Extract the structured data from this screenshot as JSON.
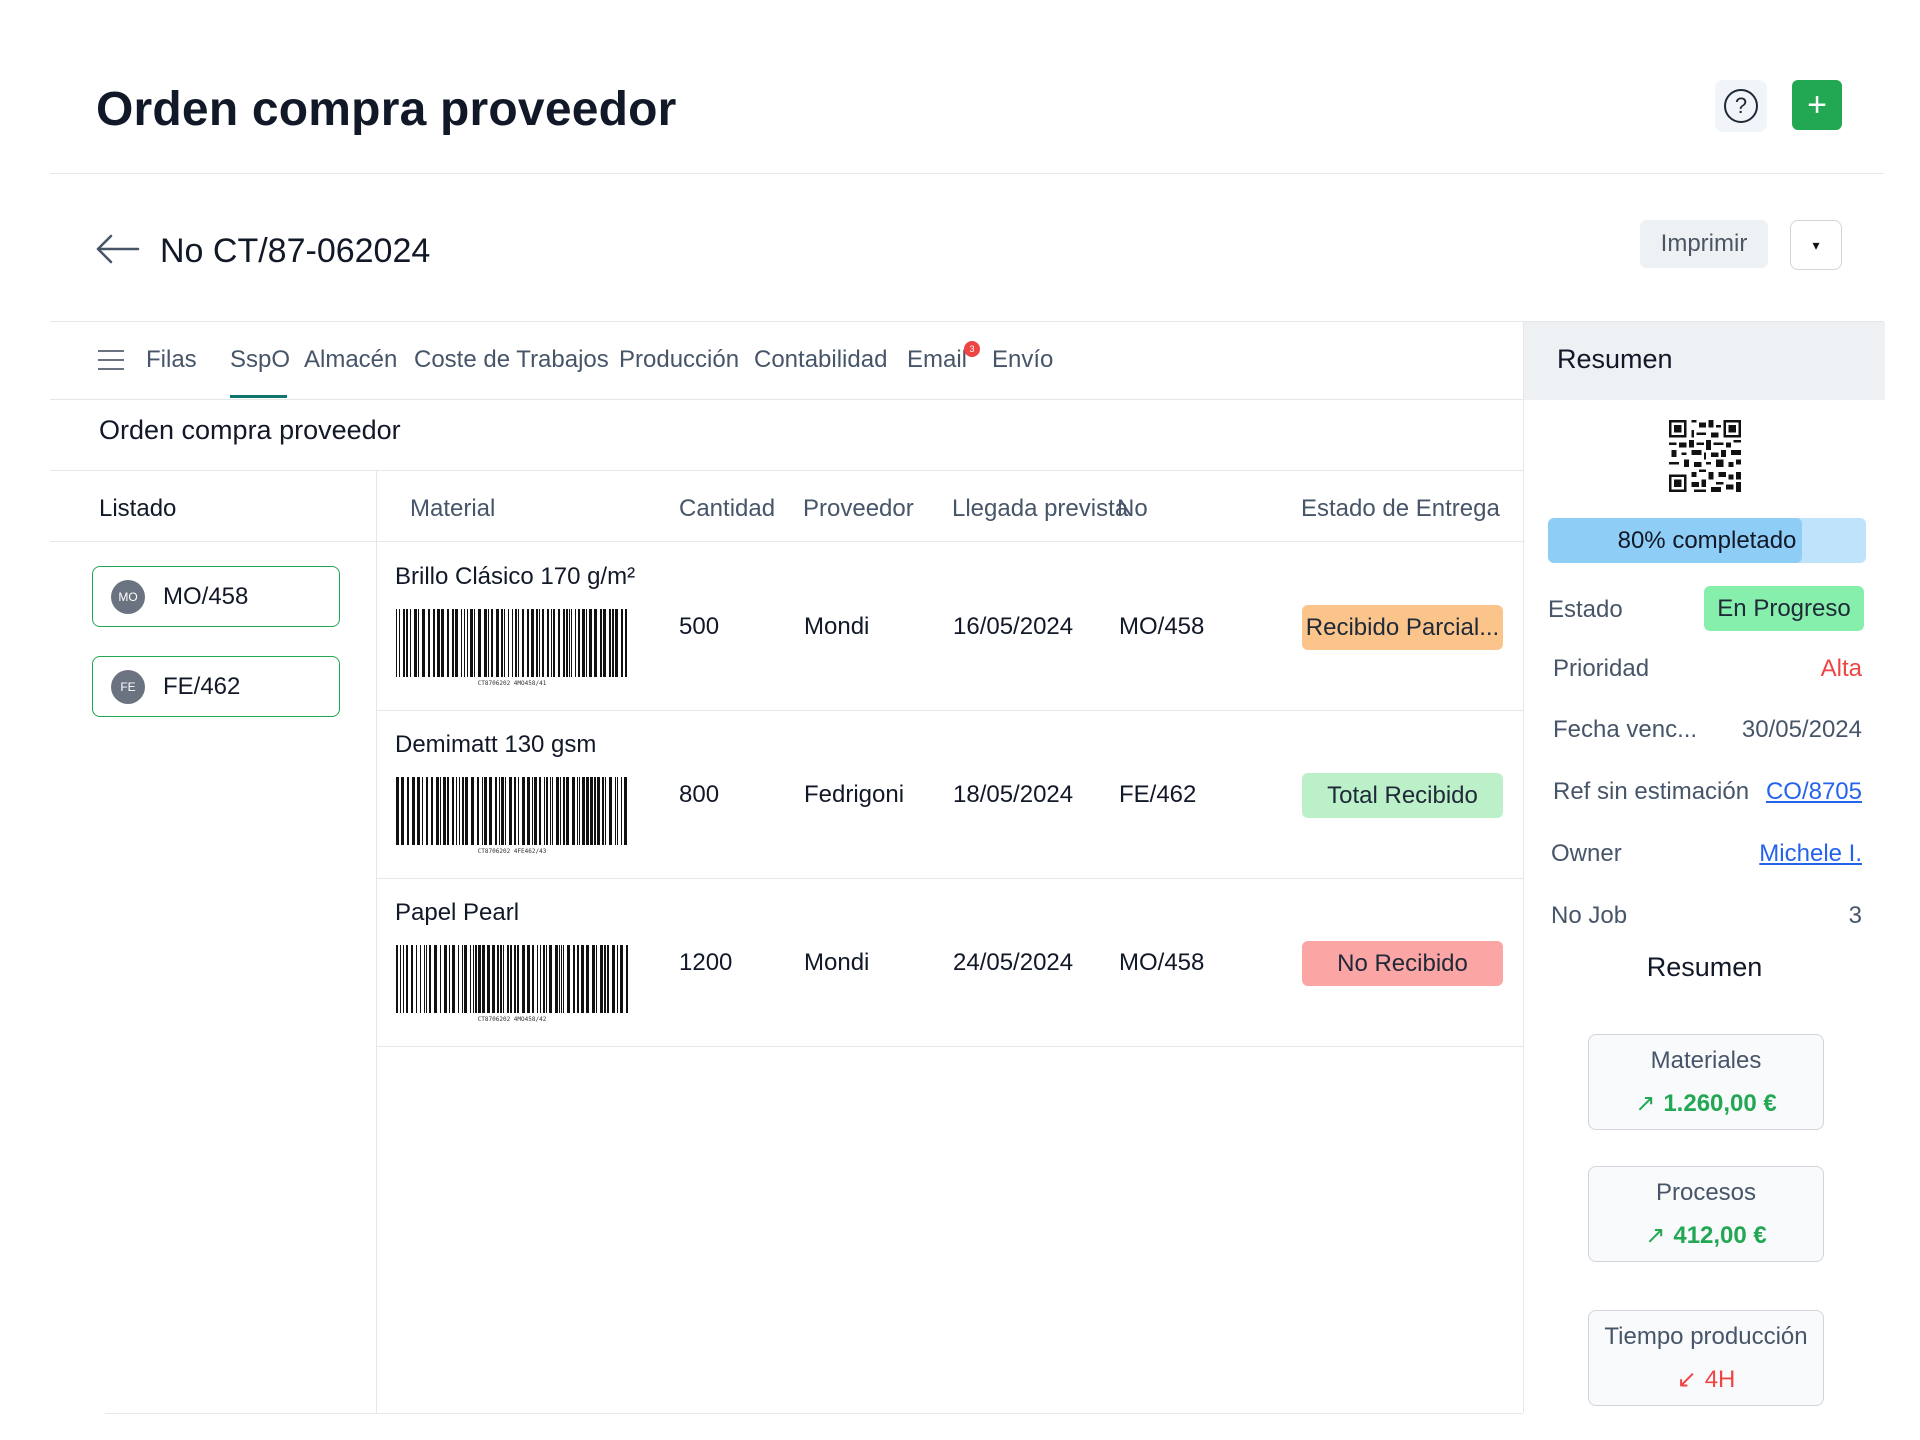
{
  "app_title": "Orden compra proveedor",
  "header": {
    "help_icon": "?",
    "add_icon": "+"
  },
  "order": {
    "number": "No CT/87-062024",
    "print_label": "Imprimir",
    "dropdown_icon": "▾"
  },
  "tabs": [
    {
      "label": "Filas"
    },
    {
      "label": "SspO",
      "active": true
    },
    {
      "label": "Almacén"
    },
    {
      "label": "Coste de Trabajos"
    },
    {
      "label": "Producción"
    },
    {
      "label": "Contabilidad"
    },
    {
      "label": "Email",
      "badge": "3"
    },
    {
      "label": "Envío"
    }
  ],
  "section_title": "Orden compra proveedor",
  "list": {
    "label": "Listado",
    "items": [
      {
        "avatar": "MO",
        "label": "MO/458"
      },
      {
        "avatar": "FE",
        "label": "FE/462"
      }
    ]
  },
  "table": {
    "headers": [
      "Material",
      "Cantidad",
      "Proveedor",
      "Llegada prevista",
      "No",
      "Estado de Entrega"
    ],
    "rows": [
      {
        "material": "Brillo Clásico 170 g/m²",
        "barcode_text": "CT8706202 4MO458/41",
        "cantidad": "500",
        "proveedor": "Mondi",
        "llegada": "16/05/2024",
        "no": "MO/458",
        "estado": "Recibido Parcial...",
        "estado_color": "#fbc48a"
      },
      {
        "material": "Demimatt 130 gsm",
        "barcode_text": "CT8706202 4FE462/43",
        "cantidad": "800",
        "proveedor": "Fedrigoni",
        "llegada": "18/05/2024",
        "no": "FE/462",
        "estado": "Total Recibido",
        "estado_color": "#bbf0c8"
      },
      {
        "material": "Papel Pearl",
        "barcode_text": "CT8706202 4MO458/42",
        "cantidad": "1200",
        "proveedor": "Mondi",
        "llegada": "24/05/2024",
        "no": "MO/458",
        "estado": "No Recibido",
        "estado_color": "#fca5a5"
      }
    ]
  },
  "summary": {
    "title": "Resumen",
    "progress_label": "80% completado",
    "progress_value": 0.8,
    "estado_label": "Estado",
    "estado_value": "En Progreso",
    "prioridad_label": "Prioridad",
    "prioridad_value": "Alta",
    "fecha_label": "Fecha venc...",
    "fecha_value": "30/05/2024",
    "ref_label": "Ref sin estimación",
    "ref_value": "CO/8705",
    "owner_label": "Owner",
    "owner_value": "Michele I.",
    "nojob_label": "No Job",
    "nojob_value": "3",
    "sub_title": "Resumen",
    "stats": [
      {
        "label": "Materiales",
        "value": "1.260,00 €",
        "trend": "up"
      },
      {
        "label": "Procesos",
        "value": "412,00 €",
        "trend": "up"
      },
      {
        "label": "Tiempo producción",
        "value": "4H",
        "trend": "down"
      }
    ],
    "colors": {
      "accent": "#22a752",
      "danger": "#ef4444",
      "link": "#2563eb"
    }
  }
}
